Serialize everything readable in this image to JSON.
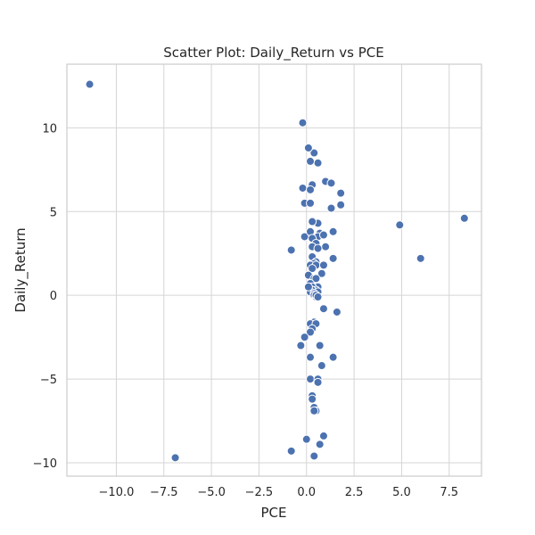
{
  "chart_data": {
    "type": "scatter",
    "title": "Scatter Plot: Daily_Return vs PCE",
    "xlabel": "PCE",
    "ylabel": "Daily_Return",
    "xlim": [
      -12.6,
      9.2
    ],
    "ylim": [
      -10.8,
      13.8
    ],
    "xticks": [
      -10.0,
      -7.5,
      -5.0,
      -2.5,
      0.0,
      2.5,
      5.0,
      7.5
    ],
    "xtick_labels": [
      "−10.0",
      "−7.5",
      "−5.0",
      "−2.5",
      "0.0",
      "2.5",
      "5.0",
      "7.5"
    ],
    "yticks": [
      -10,
      -5,
      0,
      5,
      10
    ],
    "ytick_labels": [
      "−10",
      "−5",
      "0",
      "5",
      "10"
    ],
    "grid": true,
    "point_color": "#4c72b0",
    "series": [
      {
        "x": [
          -11.4,
          -6.9,
          -0.2,
          0.4,
          0.1,
          0.6,
          0.2,
          1.0,
          1.3,
          0.3,
          -0.2,
          0.2,
          1.8,
          1.8,
          -0.1,
          0.2,
          1.3,
          4.9,
          8.3,
          0.6,
          0.3,
          0.7,
          1.4,
          -0.1,
          0.2,
          0.6,
          0.9,
          0.3,
          0.5,
          1.0,
          0.3,
          -0.8,
          0.6,
          0.3,
          1.4,
          0.5,
          0.4,
          0.2,
          0.5,
          0.9,
          0.3,
          0.1,
          0.8,
          0.4,
          0.5,
          0.2,
          0.6,
          0.3,
          0.5,
          0.3,
          0.2,
          0.6,
          0.4,
          0.4,
          0.5,
          0.1,
          0.5,
          0.6,
          0.9,
          1.6,
          0.4,
          0.2,
          0.5,
          0.3,
          0.2,
          -0.1,
          -0.3,
          0.7,
          0.2,
          1.4,
          0.8,
          0.2,
          0.6,
          0.6,
          0.3,
          0.3,
          0.4,
          0.5,
          0.4,
          0.9,
          0.0,
          0.7,
          -0.8,
          0.4,
          6.0
        ],
        "y": [
          12.6,
          -9.7,
          10.3,
          8.5,
          8.8,
          7.9,
          8.0,
          6.8,
          6.7,
          6.6,
          6.4,
          6.3,
          6.1,
          5.4,
          5.5,
          5.5,
          5.2,
          4.2,
          4.6,
          4.3,
          4.4,
          3.7,
          3.8,
          3.5,
          3.8,
          3.5,
          3.6,
          3.4,
          3.1,
          2.9,
          2.9,
          2.7,
          2.8,
          2.3,
          2.2,
          2.0,
          1.9,
          1.8,
          1.8,
          1.8,
          1.6,
          1.2,
          1.3,
          1.0,
          1.0,
          0.7,
          0.5,
          0.5,
          0.3,
          0.3,
          0.2,
          0.2,
          0.1,
          0.0,
          -0.1,
          0.5,
          0.0,
          -0.1,
          -0.8,
          -1.0,
          -1.6,
          -1.7,
          -1.7,
          -2.0,
          -2.2,
          -2.5,
          -3.0,
          -3.0,
          -3.7,
          -3.7,
          -4.2,
          -5.0,
          -5.0,
          -5.2,
          -6.0,
          -6.2,
          -6.7,
          -6.9,
          -6.9,
          -8.4,
          -8.6,
          -8.9,
          -9.3,
          -9.6,
          2.2
        ]
      }
    ]
  }
}
